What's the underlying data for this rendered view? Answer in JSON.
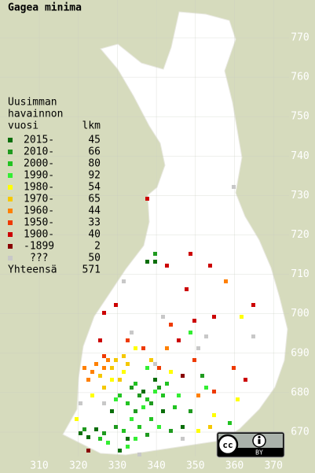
{
  "title": "Gagea minima",
  "legend": {
    "heading": [
      "Uusimman",
      "havainnon"
    ],
    "col_labels": [
      "vuosi",
      "lkm"
    ],
    "entries": [
      {
        "label": "2015-",
        "count": 45,
        "color": "#0b6e0b"
      },
      {
        "label": "2010-",
        "count": 66,
        "color": "#1f9a1f"
      },
      {
        "label": "2000-",
        "count": 80,
        "color": "#22c322"
      },
      {
        "label": "1990-",
        "count": 92,
        "color": "#33ee33"
      },
      {
        "label": "1980-",
        "count": 54,
        "color": "#ffff00"
      },
      {
        "label": "1970-",
        "count": 65,
        "color": "#f5c800"
      },
      {
        "label": "1960-",
        "count": 44,
        "color": "#ff8000"
      },
      {
        "label": "1950-",
        "count": 33,
        "color": "#ee3a00"
      },
      {
        "label": "1900-",
        "count": 40,
        "color": "#cc0000"
      },
      {
        "label": "-1899",
        "count": 2,
        "color": "#880000"
      },
      {
        "label": "???",
        "count": 50,
        "color": "#c8c8c8"
      }
    ],
    "total_label": "Yhteensä",
    "total": 571
  },
  "xticks": [
    310,
    320,
    330,
    340,
    350,
    360,
    370
  ],
  "yticks": [
    670,
    680,
    690,
    700,
    710,
    720,
    730,
    740,
    750,
    760,
    770
  ],
  "xlim": [
    300,
    380
  ],
  "ylim": [
    660,
    780
  ],
  "license": {
    "cc": "cc",
    "by": "BY"
  }
}
